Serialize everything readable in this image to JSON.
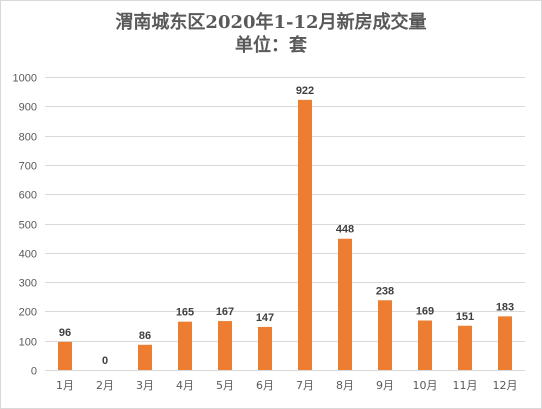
{
  "chart_data": {
    "type": "bar",
    "title": "渭南城东区2020年1-12月新房成交量",
    "subtitle": "单位：套",
    "categories": [
      "1月",
      "2月",
      "3月",
      "4月",
      "5月",
      "6月",
      "7月",
      "8月",
      "9月",
      "10月",
      "11月",
      "12月"
    ],
    "values": [
      96,
      0,
      86,
      165,
      167,
      147,
      922,
      448,
      238,
      169,
      151,
      183
    ],
    "ylim": [
      0,
      1000
    ],
    "yticks": [
      0,
      100,
      200,
      300,
      400,
      500,
      600,
      700,
      800,
      900,
      1000
    ],
    "grid": true,
    "data_labels": true,
    "legend": "none",
    "colors": {
      "bar": "#ED7D31",
      "grid": "#d9d9d9"
    }
  }
}
